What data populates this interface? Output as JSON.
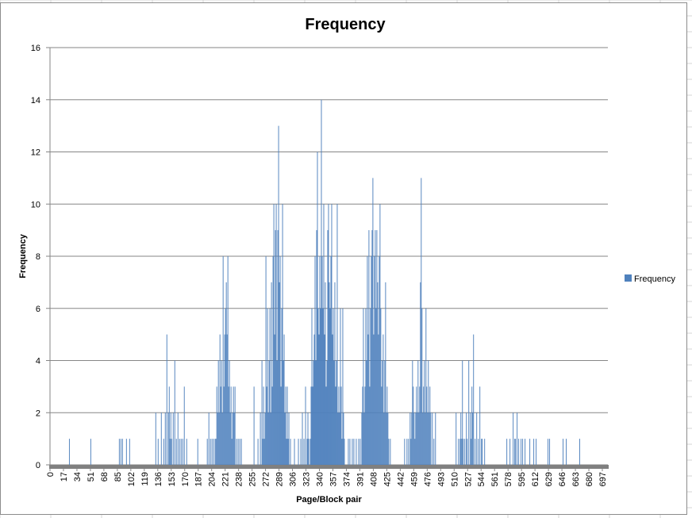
{
  "chart_data": {
    "type": "bar",
    "title": "Frequency",
    "xlabel": "Page/Block pair",
    "ylabel": "Frequency",
    "ylim": [
      0,
      16
    ],
    "y_ticks": [
      "0",
      "2",
      "4",
      "6",
      "8",
      "10",
      "12",
      "14",
      "16"
    ],
    "x_range": [
      0,
      704
    ],
    "x_tick_labels": [
      "0",
      "17",
      "34",
      "51",
      "68",
      "85",
      "102",
      "119",
      "136",
      "153",
      "170",
      "187",
      "204",
      "221",
      "238",
      "255",
      "272",
      "289",
      "306",
      "323",
      "340",
      "357",
      "374",
      "391",
      "408",
      "425",
      "442",
      "459",
      "476",
      "493",
      "510",
      "527",
      "544",
      "561",
      "578",
      "595",
      "612",
      "629",
      "646",
      "663",
      "680",
      "697"
    ],
    "grid": true,
    "legend_position": "right",
    "color": "#4f81bd",
    "series": [
      {
        "name": "Frequency"
      }
    ],
    "points": [
      [
        24,
        1
      ],
      [
        51,
        1
      ],
      [
        87,
        1
      ],
      [
        89,
        1
      ],
      [
        91,
        1
      ],
      [
        96,
        1
      ],
      [
        100,
        1
      ],
      [
        133,
        2
      ],
      [
        136,
        1
      ],
      [
        140,
        2
      ],
      [
        143,
        1
      ],
      [
        145,
        2
      ],
      [
        147,
        5
      ],
      [
        149,
        2
      ],
      [
        150,
        3
      ],
      [
        151,
        1
      ],
      [
        152,
        2
      ],
      [
        153,
        1
      ],
      [
        155,
        2
      ],
      [
        157,
        4
      ],
      [
        159,
        1
      ],
      [
        161,
        2
      ],
      [
        163,
        1
      ],
      [
        165,
        1
      ],
      [
        167,
        1
      ],
      [
        169,
        3
      ],
      [
        172,
        1
      ],
      [
        186,
        1
      ],
      [
        198,
        1
      ],
      [
        200,
        2
      ],
      [
        202,
        1
      ],
      [
        204,
        1
      ],
      [
        206,
        1
      ],
      [
        208,
        1
      ],
      [
        209,
        1
      ],
      [
        210,
        3
      ],
      [
        211,
        2
      ],
      [
        212,
        4
      ],
      [
        213,
        2
      ],
      [
        214,
        5
      ],
      [
        215,
        3
      ],
      [
        216,
        4
      ],
      [
        217,
        2
      ],
      [
        218,
        8
      ],
      [
        219,
        3
      ],
      [
        220,
        5
      ],
      [
        221,
        6
      ],
      [
        222,
        7
      ],
      [
        223,
        5
      ],
      [
        224,
        8
      ],
      [
        225,
        3
      ],
      [
        226,
        4
      ],
      [
        227,
        2
      ],
      [
        228,
        3
      ],
      [
        229,
        1
      ],
      [
        230,
        2
      ],
      [
        231,
        3
      ],
      [
        232,
        2
      ],
      [
        233,
        3
      ],
      [
        235,
        1
      ],
      [
        237,
        1
      ],
      [
        239,
        1
      ],
      [
        241,
        1
      ],
      [
        257,
        3
      ],
      [
        262,
        1
      ],
      [
        265,
        2
      ],
      [
        267,
        4
      ],
      [
        268,
        1
      ],
      [
        269,
        3
      ],
      [
        270,
        1
      ],
      [
        271,
        2
      ],
      [
        272,
        8
      ],
      [
        273,
        3
      ],
      [
        274,
        6
      ],
      [
        275,
        2
      ],
      [
        276,
        4
      ],
      [
        277,
        6
      ],
      [
        278,
        2
      ],
      [
        279,
        7
      ],
      [
        280,
        3
      ],
      [
        281,
        8
      ],
      [
        282,
        10
      ],
      [
        283,
        5
      ],
      [
        284,
        9
      ],
      [
        285,
        10
      ],
      [
        286,
        4
      ],
      [
        287,
        9
      ],
      [
        288,
        13
      ],
      [
        289,
        7
      ],
      [
        290,
        8
      ],
      [
        291,
        3
      ],
      [
        292,
        6
      ],
      [
        293,
        10
      ],
      [
        294,
        4
      ],
      [
        295,
        5
      ],
      [
        296,
        2
      ],
      [
        297,
        3
      ],
      [
        298,
        1
      ],
      [
        299,
        3
      ],
      [
        300,
        1
      ],
      [
        301,
        2
      ],
      [
        303,
        1
      ],
      [
        308,
        1
      ],
      [
        313,
        1
      ],
      [
        316,
        1
      ],
      [
        318,
        2
      ],
      [
        320,
        1
      ],
      [
        322,
        3
      ],
      [
        324,
        1
      ],
      [
        325,
        2
      ],
      [
        326,
        1
      ],
      [
        328,
        1
      ],
      [
        329,
        3
      ],
      [
        330,
        6
      ],
      [
        331,
        3
      ],
      [
        332,
        4
      ],
      [
        333,
        5
      ],
      [
        334,
        8
      ],
      [
        335,
        4
      ],
      [
        336,
        9
      ],
      [
        337,
        12
      ],
      [
        338,
        6
      ],
      [
        339,
        5
      ],
      [
        340,
        8
      ],
      [
        341,
        6
      ],
      [
        342,
        14
      ],
      [
        343,
        8
      ],
      [
        344,
        6
      ],
      [
        345,
        10
      ],
      [
        346,
        5
      ],
      [
        347,
        7
      ],
      [
        348,
        3
      ],
      [
        349,
        4
      ],
      [
        350,
        9
      ],
      [
        351,
        10
      ],
      [
        352,
        7
      ],
      [
        353,
        6
      ],
      [
        354,
        8
      ],
      [
        355,
        10
      ],
      [
        356,
        5
      ],
      [
        357,
        6
      ],
      [
        358,
        4
      ],
      [
        359,
        7
      ],
      [
        360,
        3
      ],
      [
        361,
        4
      ],
      [
        362,
        10
      ],
      [
        363,
        2
      ],
      [
        364,
        3
      ],
      [
        365,
        2
      ],
      [
        366,
        6
      ],
      [
        367,
        3
      ],
      [
        368,
        1
      ],
      [
        369,
        6
      ],
      [
        370,
        2
      ],
      [
        371,
        1
      ],
      [
        376,
        1
      ],
      [
        378,
        1
      ],
      [
        381,
        1
      ],
      [
        383,
        1
      ],
      [
        386,
        1
      ],
      [
        389,
        1
      ],
      [
        391,
        1
      ],
      [
        393,
        2
      ],
      [
        394,
        3
      ],
      [
        395,
        6
      ],
      [
        396,
        2
      ],
      [
        397,
        3
      ],
      [
        398,
        6
      ],
      [
        399,
        4
      ],
      [
        400,
        8
      ],
      [
        401,
        5
      ],
      [
        402,
        9
      ],
      [
        403,
        3
      ],
      [
        404,
        6
      ],
      [
        405,
        8
      ],
      [
        406,
        9
      ],
      [
        407,
        11
      ],
      [
        408,
        5
      ],
      [
        409,
        8
      ],
      [
        410,
        9
      ],
      [
        411,
        6
      ],
      [
        412,
        9
      ],
      [
        413,
        7
      ],
      [
        414,
        5
      ],
      [
        415,
        8
      ],
      [
        416,
        10
      ],
      [
        417,
        6
      ],
      [
        418,
        3
      ],
      [
        419,
        4
      ],
      [
        420,
        5
      ],
      [
        421,
        2
      ],
      [
        422,
        4
      ],
      [
        423,
        7
      ],
      [
        424,
        2
      ],
      [
        425,
        3
      ],
      [
        426,
        2
      ],
      [
        427,
        1
      ],
      [
        429,
        1
      ],
      [
        447,
        1
      ],
      [
        450,
        1
      ],
      [
        452,
        1
      ],
      [
        454,
        2
      ],
      [
        455,
        1
      ],
      [
        456,
        2
      ],
      [
        457,
        4
      ],
      [
        458,
        3
      ],
      [
        459,
        2
      ],
      [
        460,
        1
      ],
      [
        461,
        2
      ],
      [
        462,
        3
      ],
      [
        463,
        2
      ],
      [
        464,
        4
      ],
      [
        465,
        2
      ],
      [
        466,
        3
      ],
      [
        467,
        7
      ],
      [
        468,
        11
      ],
      [
        469,
        6
      ],
      [
        470,
        2
      ],
      [
        471,
        3
      ],
      [
        472,
        4
      ],
      [
        473,
        2
      ],
      [
        474,
        6
      ],
      [
        475,
        3
      ],
      [
        476,
        2
      ],
      [
        477,
        4
      ],
      [
        478,
        2
      ],
      [
        479,
        3
      ],
      [
        480,
        2
      ],
      [
        482,
        2
      ],
      [
        484,
        1
      ],
      [
        486,
        2
      ],
      [
        512,
        2
      ],
      [
        515,
        1
      ],
      [
        517,
        1
      ],
      [
        518,
        2
      ],
      [
        519,
        1
      ],
      [
        520,
        4
      ],
      [
        521,
        1
      ],
      [
        523,
        1
      ],
      [
        525,
        2
      ],
      [
        526,
        1
      ],
      [
        528,
        4
      ],
      [
        530,
        2
      ],
      [
        531,
        1
      ],
      [
        532,
        3
      ],
      [
        533,
        2
      ],
      [
        534,
        5
      ],
      [
        536,
        1
      ],
      [
        538,
        2
      ],
      [
        540,
        1
      ],
      [
        542,
        3
      ],
      [
        544,
        1
      ],
      [
        545,
        1
      ],
      [
        548,
        1
      ],
      [
        576,
        1
      ],
      [
        580,
        1
      ],
      [
        584,
        2
      ],
      [
        586,
        1
      ],
      [
        587,
        1
      ],
      [
        589,
        2
      ],
      [
        591,
        1
      ],
      [
        594,
        1
      ],
      [
        596,
        1
      ],
      [
        599,
        1
      ],
      [
        605,
        1
      ],
      [
        610,
        1
      ],
      [
        613,
        1
      ],
      [
        628,
        1
      ],
      [
        630,
        1
      ],
      [
        647,
        1
      ],
      [
        651,
        1
      ],
      [
        668,
        1
      ]
    ]
  }
}
